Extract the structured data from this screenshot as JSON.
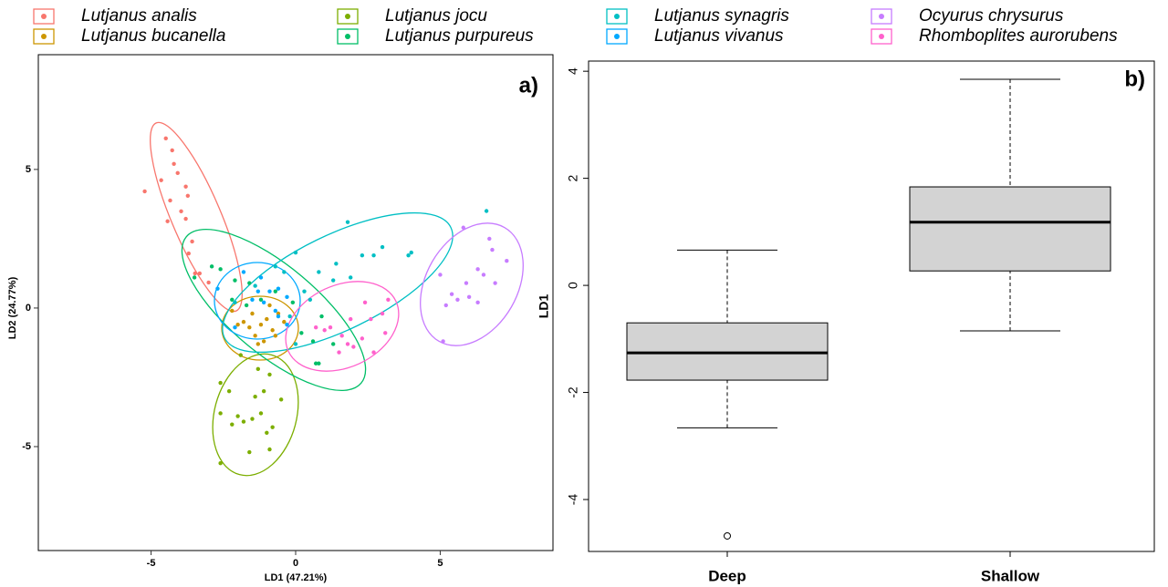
{
  "chart_data": [
    {
      "type": "scatter",
      "panel_label": "a)",
      "xlabel": "LD1 (47.21%)",
      "ylabel": "LD2 (24.77%)",
      "xlim": [
        -8.9,
        8.9
      ],
      "ylim": [
        -8.75,
        9.14
      ],
      "xticks": [
        -5,
        0,
        5
      ],
      "yticks": [
        -5,
        0,
        5
      ],
      "series": [
        {
          "name": "Lutjanus analis",
          "color": "#F8766D",
          "x": [
            -5.22,
            -4.49,
            -4.27,
            -4.65,
            -4.21,
            -4.08,
            -4.34,
            -3.8,
            -3.73,
            -3.96,
            -3.8,
            -4.43,
            -3.58,
            -3.7,
            -3.48,
            -3.32,
            -3.01
          ],
          "y": [
            4.21,
            6.12,
            5.69,
            4.61,
            5.2,
            4.87,
            3.88,
            4.38,
            4.05,
            3.49,
            3.22,
            3.13,
            2.4,
            1.97,
            1.25,
            1.25,
            0.92
          ]
        },
        {
          "name": "Lutjanus bucanella",
          "color": "#CD9600",
          "x": [
            -2.2,
            -1.8,
            -1.5,
            -1.2,
            -1.0,
            -0.8,
            -1.4,
            -1.1,
            -0.6,
            -0.9,
            -1.6,
            -0.7,
            -1.3,
            -2.0,
            -0.4
          ],
          "y": [
            -0.1,
            -0.5,
            -0.2,
            -0.6,
            -0.4,
            -0.8,
            -1.0,
            -1.2,
            -0.2,
            0.1,
            -0.7,
            -1.0,
            -1.3,
            -0.6,
            -0.5
          ]
        },
        {
          "name": "Lutjanus jocu",
          "color": "#7CAE00",
          "x": [
            -2.6,
            -2.3,
            -2.0,
            -1.8,
            -1.5,
            -1.2,
            -1.0,
            -0.8,
            -1.1,
            -0.5,
            -1.4,
            -2.6,
            -1.6,
            -2.6,
            -0.9,
            -1.9,
            -0.9,
            -1.3,
            -2.2
          ],
          "y": [
            -2.7,
            -3.0,
            -3.9,
            -4.1,
            -4.0,
            -3.8,
            -4.5,
            -4.3,
            -3.0,
            -3.3,
            -3.2,
            -3.8,
            -5.2,
            -5.6,
            -5.1,
            -1.7,
            -2.4,
            -2.2,
            -4.2
          ]
        },
        {
          "name": "Lutjanus purpureus",
          "color": "#00BE67",
          "x": [
            -2.9,
            -2.6,
            -3.5,
            -2.1,
            -1.6,
            -0.7,
            -1.2,
            0.6,
            0.7,
            1.3,
            0.9,
            -0.1,
            0.2,
            -2.2,
            -1.7,
            0.8
          ],
          "y": [
            1.5,
            1.4,
            1.1,
            1.0,
            0.9,
            0.6,
            0.3,
            -1.2,
            -2.0,
            -1.3,
            -0.3,
            0.2,
            -0.9,
            0.3,
            0.1,
            -2.0
          ]
        },
        {
          "name": "Lutjanus synagris",
          "color": "#00BFC4",
          "x": [
            0.0,
            0.8,
            1.4,
            1.9,
            2.7,
            3.0,
            3.9,
            1.3,
            1.8,
            2.3,
            -0.4,
            0.3,
            0.5,
            -0.7,
            -1.4,
            -2.1,
            0.0,
            -0.2,
            6.6,
            4.0
          ],
          "y": [
            2.0,
            1.3,
            1.6,
            1.1,
            1.9,
            2.2,
            1.9,
            1.0,
            3.1,
            1.9,
            1.3,
            0.6,
            0.3,
            1.5,
            0.8,
            0.2,
            -1.3,
            -0.3,
            3.5,
            2.0
          ]
        },
        {
          "name": "Lutjanus vivanus",
          "color": "#00A9FF",
          "x": [
            -2.7,
            -1.8,
            -1.2,
            -0.9,
            -1.5,
            -0.6,
            -0.3,
            -1.1,
            -0.7,
            -2.1,
            -0.3,
            -0.6,
            -1.3
          ],
          "y": [
            0.7,
            1.3,
            1.1,
            0.6,
            0.3,
            0.7,
            0.4,
            0.2,
            -0.1,
            -0.7,
            -0.6,
            -0.3,
            0.6
          ]
        },
        {
          "name": "Ocyurus chrysurus",
          "color": "#C77CFF",
          "x": [
            5.0,
            5.4,
            5.8,
            6.3,
            6.7,
            6.9,
            7.3,
            5.6,
            6.0,
            6.3,
            5.1,
            6.8,
            5.2,
            6.5,
            5.9
          ],
          "y": [
            1.2,
            0.5,
            2.9,
            1.4,
            2.5,
            0.9,
            1.7,
            0.3,
            0.4,
            0.2,
            -1.2,
            2.1,
            0.1,
            1.2,
            0.9
          ]
        },
        {
          "name": "Rhomboplites aurorubens",
          "color": "#FF61CC",
          "x": [
            0.7,
            1.2,
            1.6,
            1.8,
            2.0,
            2.4,
            2.6,
            3.0,
            3.2,
            3.1,
            2.3,
            2.7,
            1.5,
            1.0,
            1.9
          ],
          "y": [
            -0.7,
            -0.7,
            -1.0,
            -1.3,
            -1.4,
            0.2,
            -0.4,
            -0.2,
            0.3,
            -0.9,
            -1.1,
            -1.6,
            -1.6,
            -0.8,
            -0.4
          ]
        }
      ]
    },
    {
      "type": "box",
      "panel_label": "b)",
      "ylabel": "LD1",
      "categories": [
        "Deep",
        "Shallow"
      ],
      "ylim": [
        -4.97,
        4.19
      ],
      "yticks": [
        -4,
        -2,
        0,
        2,
        4
      ],
      "color": "#d3d3d3",
      "boxes": [
        {
          "whislo": -2.66,
          "q1": -1.77,
          "med": -1.26,
          "q3": -0.7,
          "whishi": 0.66,
          "fliers": [
            -4.68
          ]
        },
        {
          "whislo": -0.85,
          "q1": 0.27,
          "med": 1.18,
          "q3": 1.84,
          "whishi": 3.85,
          "fliers": []
        }
      ]
    }
  ]
}
